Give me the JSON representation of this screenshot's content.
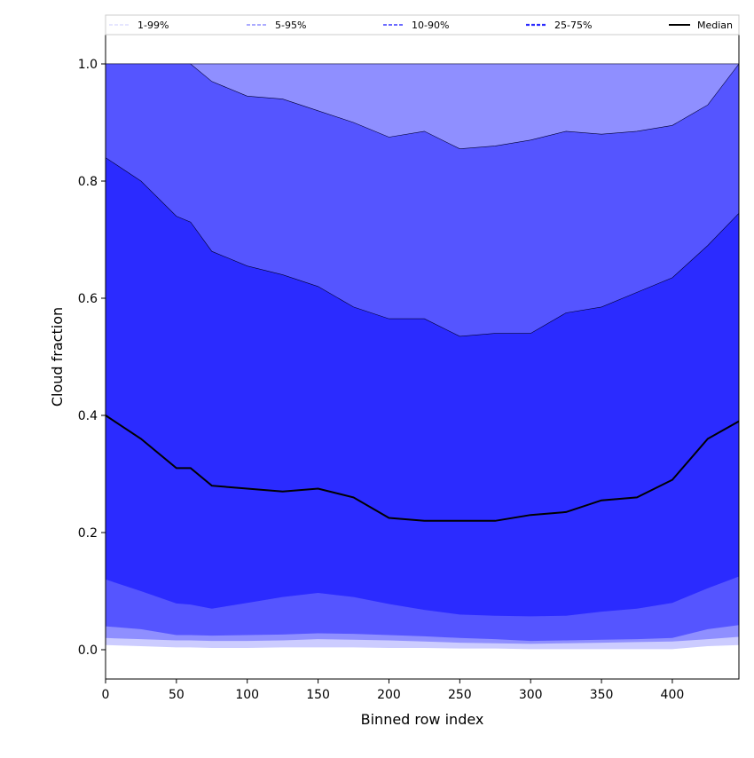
{
  "chart_data": {
    "type": "area",
    "title": "",
    "xlabel": "Binned row index",
    "ylabel": "Cloud fraction",
    "xlim": [
      0,
      447
    ],
    "ylim": [
      -0.05,
      1.05
    ],
    "xticks": [
      0,
      50,
      100,
      150,
      200,
      250,
      300,
      350,
      400
    ],
    "yticks": [
      0.0,
      0.2,
      0.4,
      0.6,
      0.8,
      1.0
    ],
    "xtick_labels": [
      "0",
      "50",
      "100",
      "150",
      "200",
      "250",
      "300",
      "350",
      "400"
    ],
    "ytick_labels": [
      "0.0",
      "0.2",
      "0.4",
      "0.6",
      "0.8",
      "1.0"
    ],
    "legend_position": "top",
    "x": [
      0,
      25,
      50,
      60,
      75,
      100,
      125,
      150,
      175,
      200,
      225,
      250,
      275,
      300,
      325,
      350,
      375,
      400,
      425,
      447
    ],
    "bands": [
      {
        "name": "1-99%",
        "color": "#ccccff",
        "lower": [
          0.008,
          0.006,
          0.004,
          0.004,
          0.003,
          0.003,
          0.004,
          0.004,
          0.004,
          0.003,
          0.003,
          0.002,
          0.002,
          0.001,
          0.001,
          0.001,
          0.001,
          0.001,
          0.006,
          0.008
        ],
        "upper": [
          1,
          1,
          1,
          1,
          1,
          1,
          1,
          1,
          1,
          1,
          1,
          1,
          1,
          1,
          1,
          1,
          1,
          1,
          1,
          1
        ]
      },
      {
        "name": "5-95%",
        "color": "#8f8fff",
        "lower": [
          0.02,
          0.018,
          0.016,
          0.016,
          0.015,
          0.015,
          0.016,
          0.018,
          0.017,
          0.016,
          0.014,
          0.012,
          0.011,
          0.01,
          0.011,
          0.012,
          0.013,
          0.014,
          0.018,
          0.022
        ],
        "upper": [
          1,
          1,
          1,
          1,
          1,
          1,
          1,
          1,
          1,
          1,
          1,
          1,
          1,
          1,
          1,
          1,
          1,
          1,
          1,
          1
        ]
      },
      {
        "name": "10-90%",
        "color": "#5555ff",
        "lower": [
          0.04,
          0.035,
          0.025,
          0.025,
          0.024,
          0.025,
          0.026,
          0.028,
          0.027,
          0.025,
          0.023,
          0.02,
          0.018,
          0.015,
          0.016,
          0.017,
          0.018,
          0.02,
          0.035,
          0.042
        ],
        "upper": [
          1,
          1,
          1,
          1,
          0.97,
          0.945,
          0.94,
          0.92,
          0.9,
          0.875,
          0.885,
          0.855,
          0.86,
          0.87,
          0.885,
          0.88,
          0.885,
          0.895,
          0.93,
          1.0
        ]
      },
      {
        "name": "25-75%",
        "color": "#2b2bff",
        "lower": [
          0.12,
          0.1,
          0.079,
          0.077,
          0.07,
          0.08,
          0.09,
          0.097,
          0.09,
          0.078,
          0.068,
          0.06,
          0.058,
          0.057,
          0.058,
          0.065,
          0.07,
          0.08,
          0.105,
          0.125
        ],
        "upper": [
          0.84,
          0.8,
          0.74,
          0.73,
          0.68,
          0.655,
          0.64,
          0.62,
          0.585,
          0.565,
          0.565,
          0.535,
          0.54,
          0.54,
          0.575,
          0.585,
          0.61,
          0.635,
          0.69,
          0.745
        ]
      }
    ],
    "median": {
      "name": "Median",
      "color": "#000000",
      "values": [
        0.4,
        0.36,
        0.31,
        0.31,
        0.28,
        0.275,
        0.27,
        0.275,
        0.26,
        0.225,
        0.22,
        0.22,
        0.22,
        0.23,
        0.235,
        0.255,
        0.26,
        0.29,
        0.36,
        0.39
      ]
    }
  }
}
